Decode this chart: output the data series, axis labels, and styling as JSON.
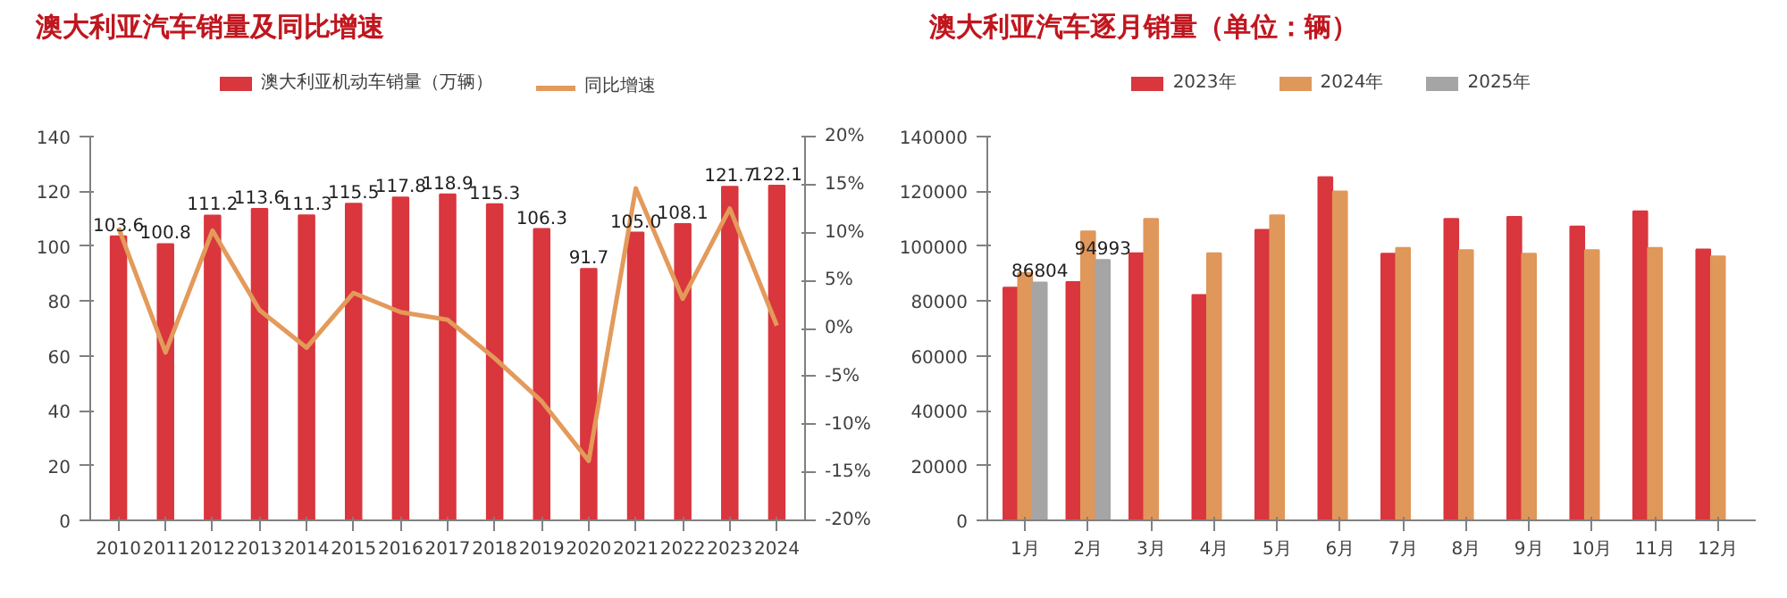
{
  "chart_data": [
    {
      "type": "bar",
      "title": "澳大利亚汽车销量及同比增速",
      "categories": [
        "2010",
        "2011",
        "2012",
        "2013",
        "2014",
        "2015",
        "2016",
        "2017",
        "2018",
        "2019",
        "2020",
        "2021",
        "2022",
        "2023",
        "2024"
      ],
      "series": [
        {
          "name": "澳大利亚机动车销量（万辆）",
          "type": "bar",
          "color": "#d9363e",
          "values": [
            103.6,
            100.8,
            111.2,
            113.6,
            111.3,
            115.5,
            117.8,
            118.9,
            115.3,
            106.3,
            91.7,
            105.0,
            108.1,
            121.7,
            122.1
          ],
          "value_labels": [
            "103.6",
            "100.8",
            "111.2",
            "113.6",
            "111.3",
            "115.5",
            "117.8",
            "118.9",
            "115.3",
            "106.3",
            "91.7",
            "105.0",
            "108.1",
            "121.7",
            "122.1"
          ]
        },
        {
          "name": "同比增速",
          "type": "line",
          "axis": "y2",
          "color": "#e39a5a",
          "values": [
            10.5,
            -2.5,
            10.2,
            1.9,
            -2.0,
            3.7,
            1.7,
            0.9,
            -3.1,
            -7.6,
            -13.8,
            14.6,
            3.1,
            12.5,
            0.3
          ]
        }
      ],
      "ylim": [
        0,
        140
      ],
      "yticks": [
        0,
        20,
        40,
        60,
        80,
        100,
        120,
        140
      ],
      "y2lim": [
        -20,
        20
      ],
      "y2ticks": [
        {
          "value": -20,
          "label": "-20%"
        },
        {
          "value": -15,
          "label": "-15%"
        },
        {
          "value": -10,
          "label": "-10%"
        },
        {
          "value": -5,
          "label": "-5%"
        },
        {
          "value": 0,
          "label": "0%"
        },
        {
          "value": 5,
          "label": "5%"
        },
        {
          "value": 10,
          "label": "10%"
        },
        {
          "value": 15,
          "label": "15%"
        },
        {
          "value": 20,
          "label": "20%"
        }
      ],
      "legend": "top",
      "grid": false
    },
    {
      "type": "bar",
      "title": "澳大利亚汽车逐月销量（单位：辆）",
      "categories": [
        "1月",
        "2月",
        "3月",
        "4月",
        "5月",
        "6月",
        "7月",
        "8月",
        "9月",
        "10月",
        "11月",
        "12月"
      ],
      "series": [
        {
          "name": "2023年",
          "color": "#d9363e",
          "values": [
            84900,
            86900,
            97400,
            82200,
            106000,
            125200,
            97300,
            110000,
            110700,
            107200,
            112700,
            98800
          ]
        },
        {
          "name": "2024年",
          "color": "#e0975a",
          "values": [
            90200,
            105400,
            110000,
            97400,
            111300,
            120000,
            99400,
            98600,
            97300,
            98600,
            99400,
            96300
          ]
        },
        {
          "name": "2025年",
          "color": "#a5a5a5",
          "values": [
            86804,
            94993,
            null,
            null,
            null,
            null,
            null,
            null,
            null,
            null,
            null,
            null
          ],
          "value_labels": [
            "86804",
            "94993",
            null,
            null,
            null,
            null,
            null,
            null,
            null,
            null,
            null,
            null
          ]
        }
      ],
      "ylim": [
        0,
        140000
      ],
      "yticks": [
        0,
        20000,
        40000,
        60000,
        80000,
        100000,
        120000,
        140000
      ],
      "legend": "top",
      "grid": false
    }
  ]
}
